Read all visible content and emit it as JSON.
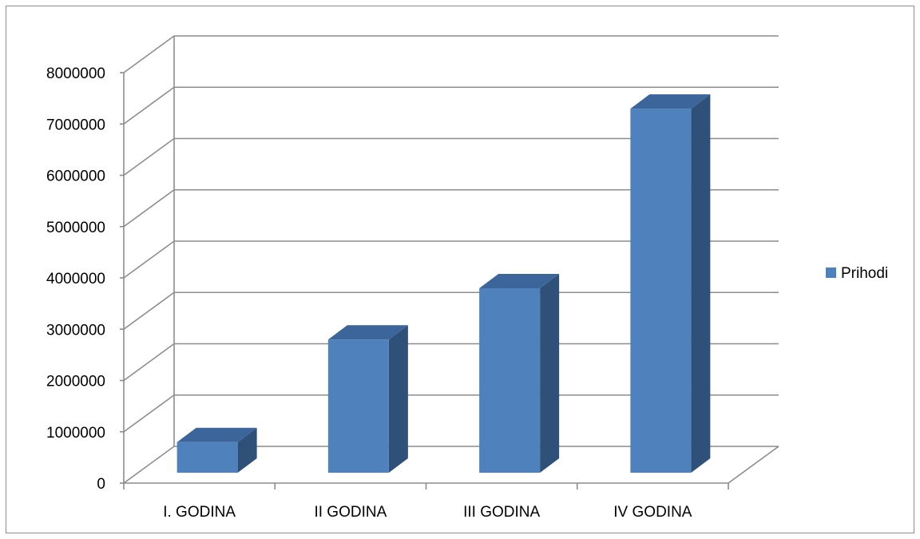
{
  "chart_data": {
    "type": "bar",
    "style": "3d-clustered-column",
    "categories": [
      "I. GODINA",
      "II GODINA",
      "III GODINA",
      "IV GODINA"
    ],
    "series": [
      {
        "name": "Prihodi",
        "values": [
          1000000,
          3000000,
          4000000,
          7500000
        ]
      }
    ],
    "ylim": [
      0,
      8000000
    ],
    "yticks": [
      0,
      1000000,
      2000000,
      3000000,
      4000000,
      5000000,
      6000000,
      7000000,
      8000000
    ],
    "grid": true,
    "legend": "right"
  },
  "colors": {
    "bar_front": "#4f81bd",
    "bar_side": "#2f5079",
    "bar_top": "#3c659c",
    "gridline": "#8c8c8c"
  }
}
